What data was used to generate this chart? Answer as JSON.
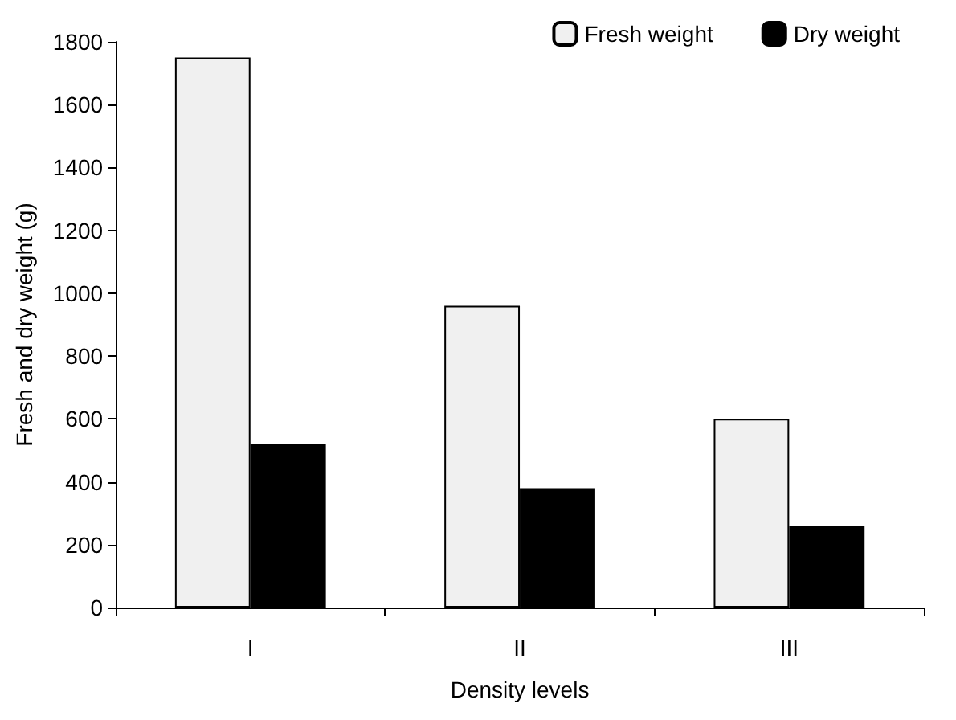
{
  "chart_data": {
    "type": "bar",
    "xlabel": "Density levels",
    "ylabel": "Fresh and dry weight (g)",
    "categories": [
      "I",
      "II",
      "III"
    ],
    "series": [
      {
        "name": "Fresh weight",
        "color": "#f0f0f0",
        "values": [
          1750,
          960,
          600
        ]
      },
      {
        "name": "Dry weight",
        "color": "#000000",
        "values": [
          520,
          380,
          260
        ]
      }
    ],
    "ylim": [
      0,
      1800
    ],
    "yticks": [
      0,
      200,
      400,
      600,
      800,
      1000,
      1200,
      1400,
      1600,
      1800
    ],
    "grid": false,
    "legend": "top right"
  }
}
